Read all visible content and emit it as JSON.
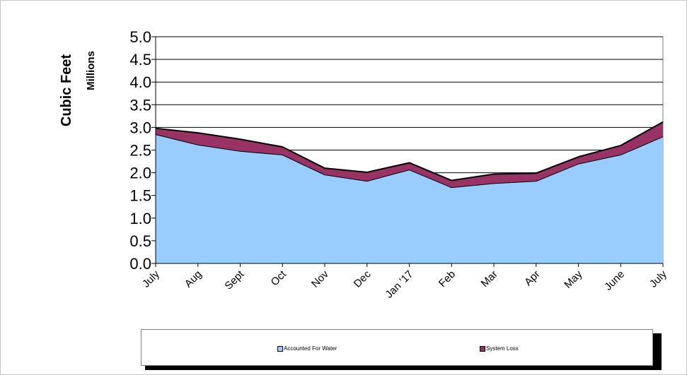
{
  "chart_data": {
    "type": "area",
    "stacked": true,
    "categories": [
      "July",
      "Aug",
      "Sept",
      "Oct",
      "Nov",
      "Dec",
      "Jan '17",
      "Feb",
      "Mar",
      "Apr",
      "May",
      "June",
      "July"
    ],
    "series": [
      {
        "name": "Accounted For Water",
        "color": "#99ccff",
        "values": [
          2.85,
          2.62,
          2.48,
          2.4,
          1.96,
          1.82,
          2.07,
          1.68,
          1.77,
          1.82,
          2.2,
          2.4,
          2.8
        ]
      },
      {
        "name": "System Loss",
        "color": "#993366",
        "values": [
          0.13,
          0.26,
          0.26,
          0.17,
          0.14,
          0.19,
          0.15,
          0.15,
          0.2,
          0.17,
          0.15,
          0.2,
          0.32
        ]
      }
    ],
    "ylabel": "Cubic Feet",
    "yunit_label": "Millions",
    "ylim": [
      0,
      5
    ],
    "yticks": [
      "0.0",
      "0.5",
      "1.0",
      "1.5",
      "2.0",
      "2.5",
      "3.0",
      "3.5",
      "4.0",
      "4.5",
      "5.0"
    ],
    "grid": true,
    "legend_position": "bottom"
  }
}
